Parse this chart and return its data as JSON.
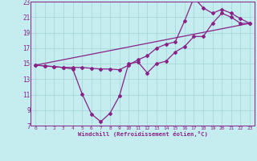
{
  "xlabel": "Windchill (Refroidissement éolien,°C)",
  "xlim": [
    -0.5,
    23.5
  ],
  "ylim": [
    7,
    23
  ],
  "xticks": [
    0,
    1,
    2,
    3,
    4,
    5,
    6,
    7,
    8,
    9,
    10,
    11,
    12,
    13,
    14,
    15,
    16,
    17,
    18,
    19,
    20,
    21,
    22,
    23
  ],
  "yticks": [
    7,
    9,
    11,
    13,
    15,
    17,
    19,
    21,
    23
  ],
  "bg_color": "#c5ecee",
  "line_color": "#882288",
  "grid_color": "#a8d8dc",
  "line1_x": [
    0,
    1,
    2,
    3,
    4,
    5,
    6,
    7,
    8,
    9,
    10,
    11,
    12,
    13,
    14,
    15,
    16,
    17,
    18,
    19,
    20,
    21,
    22,
    23
  ],
  "line1_y": [
    14.8,
    14.7,
    14.6,
    14.5,
    14.3,
    11.1,
    8.5,
    7.5,
    8.6,
    10.8,
    15.0,
    15.2,
    13.8,
    15.0,
    15.3,
    16.5,
    17.2,
    18.5,
    18.5,
    20.2,
    21.5,
    21.0,
    20.2,
    20.2
  ],
  "line2_x": [
    0,
    1,
    2,
    3,
    4,
    5,
    6,
    7,
    8,
    9,
    10,
    11,
    12,
    13,
    14,
    15,
    16,
    17,
    18,
    19,
    20,
    21,
    22,
    23
  ],
  "line2_y": [
    14.8,
    14.7,
    14.6,
    14.5,
    14.5,
    14.5,
    14.4,
    14.3,
    14.3,
    14.2,
    14.8,
    15.5,
    16.0,
    17.0,
    17.5,
    17.8,
    20.5,
    23.5,
    22.2,
    21.5,
    22.0,
    21.5,
    20.8,
    20.2
  ],
  "line3_x": [
    0,
    23
  ],
  "line3_y": [
    14.8,
    20.2
  ]
}
